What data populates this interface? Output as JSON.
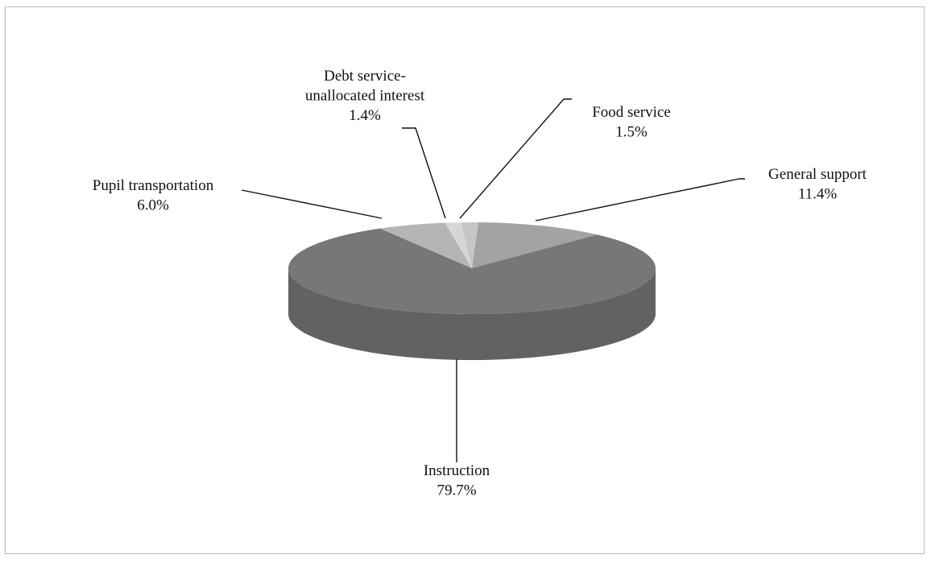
{
  "chart_data": {
    "type": "pie",
    "style": "3d",
    "slices": [
      {
        "label_lines": [
          "General support"
        ],
        "value": 11.4,
        "value_label": "11.4%",
        "color": "#a3a3a3"
      },
      {
        "label_lines": [
          "Instruction"
        ],
        "value": 79.7,
        "value_label": "79.7%",
        "color": "#777777"
      },
      {
        "label_lines": [
          "Pupil transportation"
        ],
        "value": 6.0,
        "value_label": "6.0%",
        "color": "#b5b5b5"
      },
      {
        "label_lines": [
          "Debt service-",
          "unallocated interest"
        ],
        "value": 1.4,
        "value_label": "1.4%",
        "color": "#d6d6d6"
      },
      {
        "label_lines": [
          "Food service"
        ],
        "value": 1.5,
        "value_label": "1.5%",
        "color": "#c6c6c6"
      }
    ],
    "legend": "none"
  }
}
